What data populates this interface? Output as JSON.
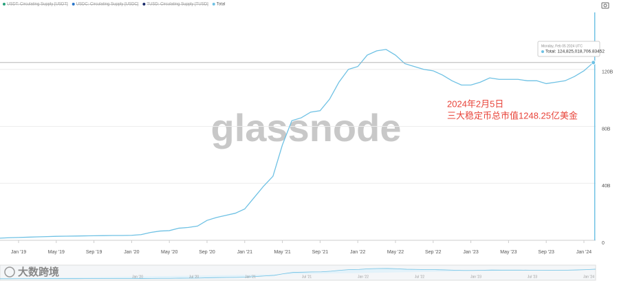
{
  "chart_data": {
    "type": "line",
    "legend": [
      {
        "name": "USDT: Circulating Supply [USDT]",
        "color": "#26a17b",
        "hidden": true
      },
      {
        "name": "USDC: Circulating Supply [USDC]",
        "color": "#2775ca",
        "hidden": true
      },
      {
        "name": "TUSD: Circulating Supply [TUSD]",
        "color": "#1a2b6b",
        "hidden": true
      },
      {
        "name": "Total",
        "color": "#6ec1e4",
        "hidden": false
      }
    ],
    "categories": [
      null,
      null,
      "Jan '19",
      null,
      null,
      null,
      "May '19",
      null,
      null,
      null,
      "Sep '19",
      null,
      null,
      null,
      "Jan '20",
      null,
      null,
      null,
      "May '20",
      null,
      null,
      null,
      "Sep '20",
      null,
      null,
      null,
      "Jan '21",
      null,
      null,
      null,
      "May '21",
      null,
      null,
      null,
      "Sep '21",
      null,
      null,
      null,
      "Jan '22",
      null,
      null,
      null,
      "May '22",
      null,
      null,
      null,
      "Sep '22",
      null,
      null,
      null,
      "Jan '23",
      null,
      null,
      null,
      "May '23",
      null,
      null,
      null,
      "Sep '23",
      null,
      null,
      null,
      "Jan '24",
      null
    ],
    "series": [
      {
        "name": "Total",
        "color": "#6ec1e4",
        "values": [
          1.5,
          1.8,
          2.0,
          2.2,
          2.4,
          2.6,
          2.8,
          2.9,
          3.0,
          3.1,
          3.2,
          3.3,
          3.4,
          3.4,
          3.5,
          4.0,
          5.5,
          6.5,
          6.8,
          8.5,
          9.0,
          10.0,
          14,
          16,
          17.5,
          19,
          22,
          30,
          38,
          45,
          67,
          84,
          86,
          90,
          91,
          99,
          111,
          120,
          122,
          130,
          133,
          134,
          130,
          124,
          122,
          120,
          119,
          116,
          112,
          109,
          109,
          111,
          114,
          113,
          113,
          113,
          112,
          112,
          110,
          111,
          112,
          115,
          119,
          124.8
        ]
      }
    ],
    "ylim": [
      0,
      160
    ],
    "yticks": [
      0,
      {
        "value": 40,
        "label": "40B"
      },
      {
        "value": 80,
        "label": "80B"
      },
      {
        "value": 120,
        "label": "120B"
      }
    ],
    "grid": true,
    "watermark": "glassnode",
    "tooltip": {
      "date": "Monday, Feb 05 2024 UTC",
      "text": "Total: 124,825,018,706.83452"
    },
    "annotation": [
      "2024年2月5日",
      "三大稳定币总市值1248.25亿美金"
    ],
    "navigator_labels": [
      "Jan '20",
      "Jul '20",
      "Jan '21",
      "Jul '21",
      "Jan '22",
      "Jul '22",
      "Jan '23",
      "Jul '23",
      "Jan '24"
    ],
    "source_logo": "大数跨境"
  }
}
